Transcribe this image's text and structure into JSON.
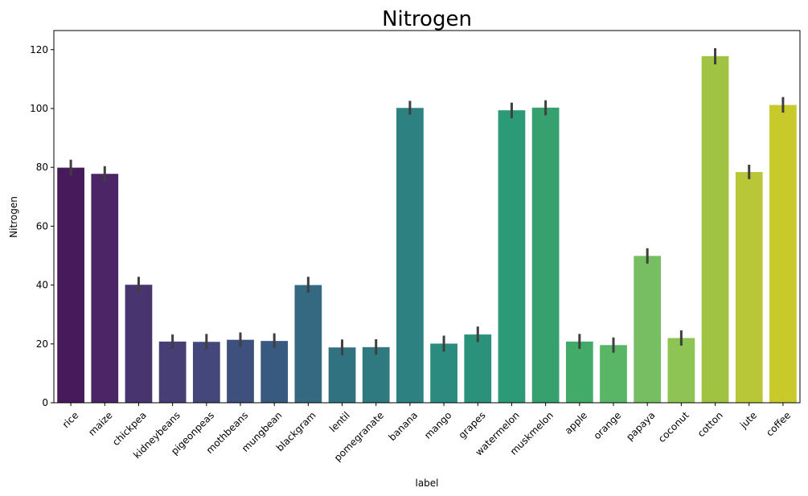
{
  "chart_data": {
    "type": "bar",
    "title": "Nitrogen",
    "xlabel": "label",
    "ylabel": "Nitrogen",
    "ylim": [
      0,
      126.5
    ],
    "yticks": [
      0,
      20,
      40,
      60,
      80,
      100,
      120
    ],
    "grid": false,
    "categories": [
      "rice",
      "maize",
      "chickpea",
      "kidneybeans",
      "pigeonpeas",
      "mothbeans",
      "mungbean",
      "blackgram",
      "lentil",
      "pomegranate",
      "banana",
      "mango",
      "grapes",
      "watermelon",
      "muskmelon",
      "apple",
      "orange",
      "papaya",
      "coconut",
      "cotton",
      "jute",
      "coffee"
    ],
    "values": [
      79.9,
      77.8,
      40.1,
      20.8,
      20.7,
      21.4,
      21.0,
      40.0,
      18.8,
      18.9,
      100.2,
      20.1,
      23.2,
      99.4,
      100.3,
      20.8,
      19.6,
      49.9,
      22.0,
      117.8,
      78.4,
      101.2
    ],
    "error_low": [
      77.2,
      75.1,
      37.6,
      18.4,
      18.1,
      19.0,
      18.5,
      37.4,
      16.2,
      16.3,
      97.9,
      17.4,
      20.6,
      96.7,
      97.7,
      18.3,
      17.0,
      47.3,
      19.4,
      115.0,
      76.0,
      98.6
    ],
    "error_high": [
      82.6,
      80.4,
      42.8,
      23.2,
      23.4,
      23.9,
      23.6,
      42.8,
      21.5,
      21.6,
      102.6,
      22.8,
      25.9,
      102.0,
      102.8,
      23.4,
      22.2,
      52.5,
      24.6,
      120.5,
      80.9,
      103.9
    ],
    "colors": [
      "#471a5b",
      "#4b2566",
      "#48346f",
      "#463e75",
      "#43477a",
      "#3e507d",
      "#395a80",
      "#346981",
      "#317281",
      "#2e7a80",
      "#2d8180",
      "#2a8b7e",
      "#2a927b",
      "#2c9a76",
      "#36a16f",
      "#43ab6a",
      "#5ab667",
      "#77be62",
      "#8dc454",
      "#a0c441",
      "#b7c737",
      "#c8c92b"
    ],
    "error_color": "#3f3f3f"
  }
}
